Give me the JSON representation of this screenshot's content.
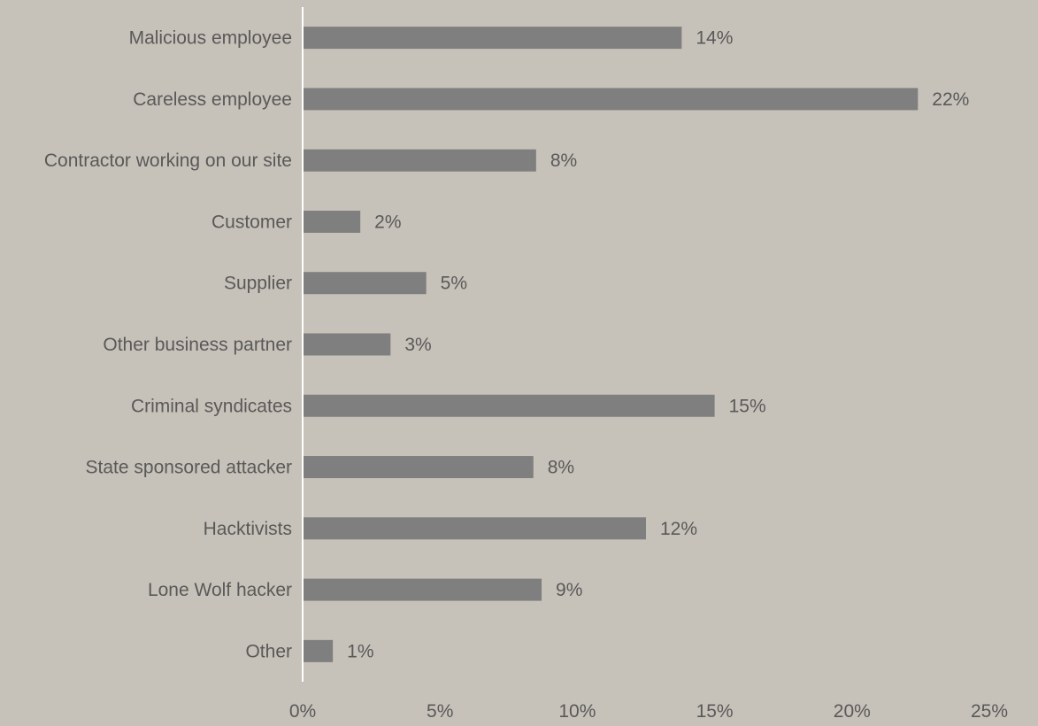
{
  "chart_data": {
    "type": "bar",
    "orientation": "horizontal",
    "categories": [
      "Malicious employee",
      "Careless employee",
      "Contractor working on our site",
      "Customer",
      "Supplier",
      "Other business partner",
      "Criminal syndicates",
      "State sponsored attacker",
      "Hacktivists",
      "Lone Wolf hacker",
      "Other"
    ],
    "values": [
      13.8,
      22.4,
      8.5,
      2.1,
      4.5,
      3.2,
      15.0,
      8.4,
      12.5,
      8.7,
      1.1
    ],
    "value_labels": [
      "14%",
      "22%",
      "8%",
      "2%",
      "5%",
      "3%",
      "15%",
      "8%",
      "12%",
      "9%",
      "1%"
    ],
    "xlim": [
      0,
      25
    ],
    "x_ticks": [
      0,
      5,
      10,
      15,
      20,
      25
    ],
    "x_tick_labels": [
      "0%",
      "5%",
      "10%",
      "15%",
      "20%",
      "25%"
    ],
    "title": "",
    "xlabel": "",
    "ylabel": "",
    "grid": false,
    "legend": "none",
    "colors": {
      "background": "#c7c2b9",
      "bar": "#7f7f7f",
      "axis": "#ffffff",
      "text": "#595959"
    }
  }
}
